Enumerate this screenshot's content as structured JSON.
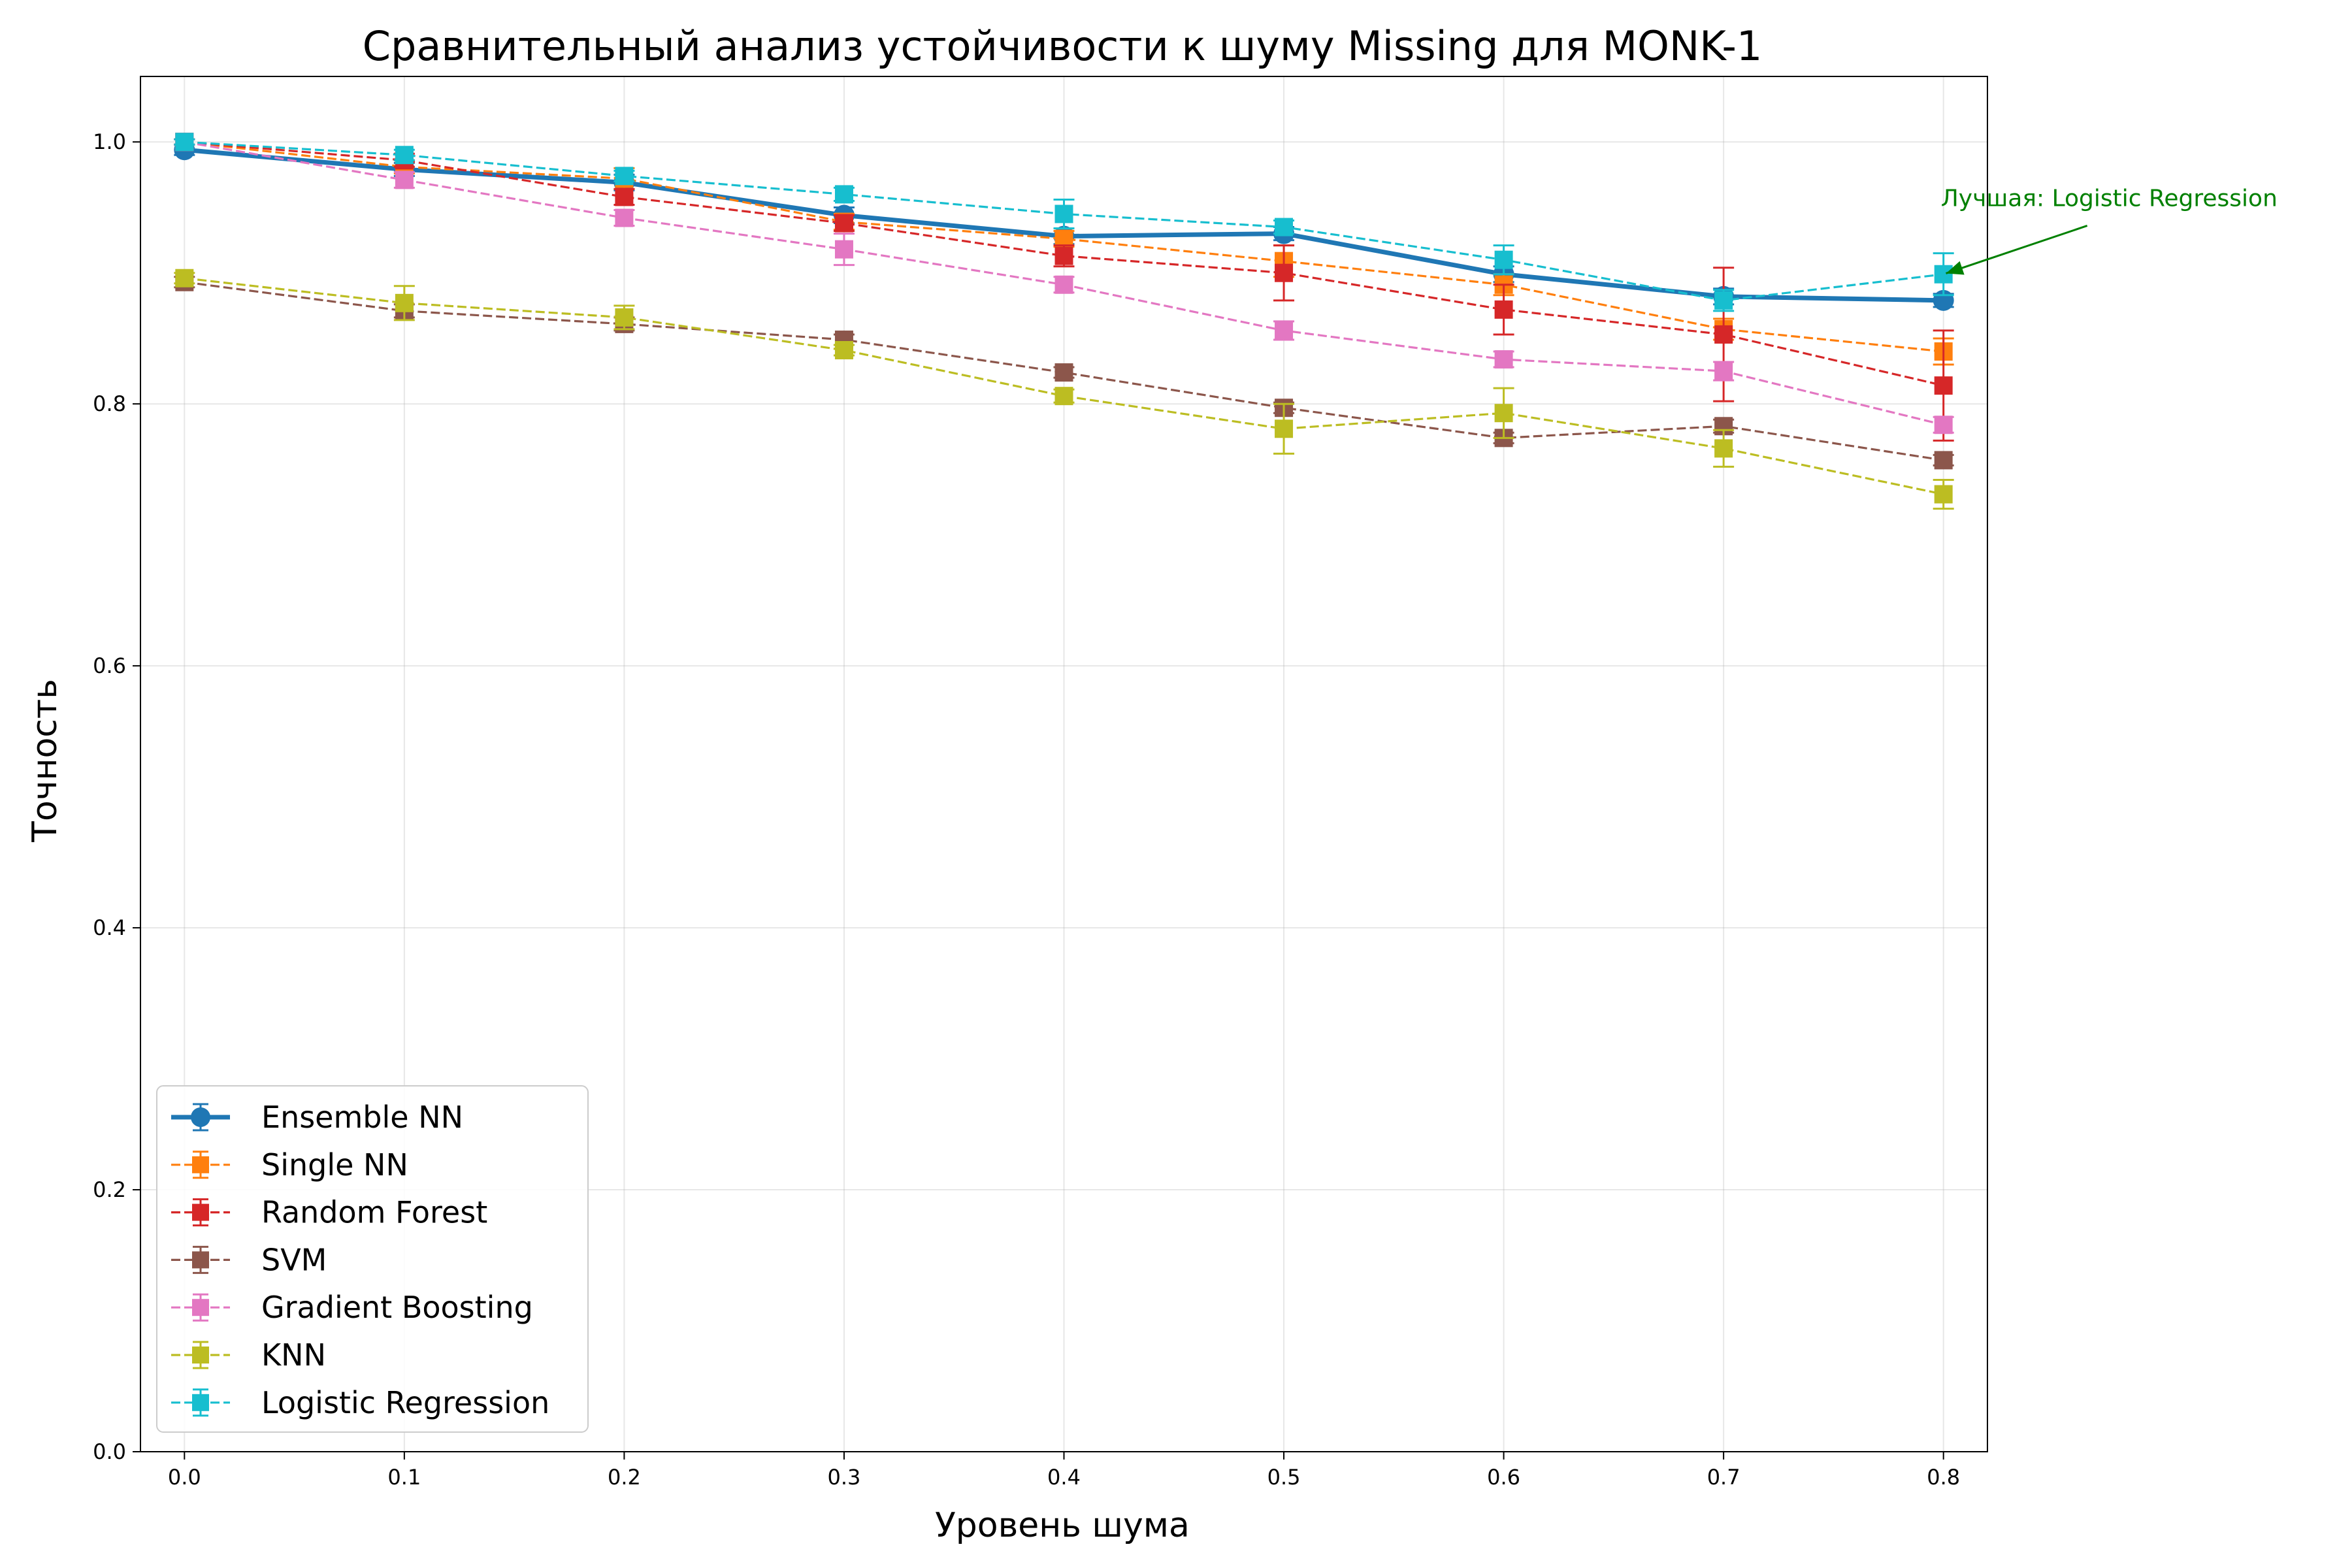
{
  "chart_data": {
    "type": "line",
    "title": "Сравнительный анализ устойчивости к шуму Missing для MONK-1",
    "xlabel": "Уровень шума",
    "ylabel": "Точность",
    "xlim": [
      -0.02,
      0.82
    ],
    "ylim": [
      0.0,
      1.05
    ],
    "x": [
      0.0,
      0.1,
      0.2,
      0.3,
      0.4,
      0.5,
      0.6,
      0.7,
      0.8
    ],
    "x_tick_labels": [
      "0.0",
      "0.1",
      "0.2",
      "0.3",
      "0.4",
      "0.5",
      "0.6",
      "0.7",
      "0.8"
    ],
    "y_ticks": [
      0.0,
      0.2,
      0.4,
      0.6,
      0.8,
      1.0
    ],
    "y_tick_labels": [
      "0.0",
      "0.2",
      "0.4",
      "0.6",
      "0.8",
      "1.0"
    ],
    "grid": true,
    "legend_position": "lower-left",
    "series": [
      {
        "name": "Ensemble NN",
        "color": "#1f77b4",
        "style": "solid",
        "marker": "circle",
        "values": [
          0.994,
          0.979,
          0.969,
          0.944,
          0.928,
          0.93,
          0.899,
          0.882,
          0.879
        ],
        "errors": [
          0.004,
          0.005,
          0.006,
          0.006,
          0.006,
          0.005,
          0.006,
          0.006,
          0.005
        ]
      },
      {
        "name": "Single NN",
        "color": "#ff7f0e",
        "style": "dashed",
        "marker": "square",
        "values": [
          1.0,
          0.981,
          0.972,
          0.939,
          0.926,
          0.909,
          0.891,
          0.857,
          0.84
        ],
        "errors": [
          0.002,
          0.005,
          0.008,
          0.006,
          0.006,
          0.012,
          0.008,
          0.008,
          0.01
        ]
      },
      {
        "name": "Random Forest",
        "color": "#d62728",
        "style": "dashed",
        "marker": "square",
        "values": [
          1.0,
          0.986,
          0.958,
          0.938,
          0.913,
          0.9,
          0.872,
          0.853,
          0.814
        ],
        "errors": [
          0.002,
          0.005,
          0.006,
          0.006,
          0.008,
          0.021,
          0.019,
          0.051,
          0.042
        ]
      },
      {
        "name": "SVM",
        "color": "#8c564b",
        "style": "dashed",
        "marker": "square",
        "values": [
          0.893,
          0.871,
          0.861,
          0.849,
          0.824,
          0.797,
          0.774,
          0.783,
          0.757
        ],
        "errors": [
          0.004,
          0.005,
          0.005,
          0.004,
          0.004,
          0.004,
          0.004,
          0.005,
          0.004
        ]
      },
      {
        "name": "Gradient Boosting",
        "color": "#e377c2",
        "style": "dashed",
        "marker": "square",
        "values": [
          1.0,
          0.971,
          0.942,
          0.918,
          0.891,
          0.856,
          0.834,
          0.825,
          0.784
        ],
        "errors": [
          0.002,
          0.006,
          0.006,
          0.012,
          0.006,
          0.007,
          0.006,
          0.007,
          0.006
        ]
      },
      {
        "name": "KNN",
        "color": "#bcbd22",
        "style": "dashed",
        "marker": "square",
        "values": [
          0.896,
          0.877,
          0.866,
          0.841,
          0.806,
          0.781,
          0.793,
          0.766,
          0.731
        ],
        "errors": [
          0.004,
          0.013,
          0.009,
          0.004,
          0.005,
          0.019,
          0.019,
          0.014,
          0.011
        ]
      },
      {
        "name": "Logistic Regression",
        "color": "#17becf",
        "style": "dashed",
        "marker": "square",
        "values": [
          1.0,
          0.99,
          0.974,
          0.96,
          0.945,
          0.935,
          0.91,
          0.879,
          0.899
        ],
        "errors": [
          0.002,
          0.004,
          0.004,
          0.005,
          0.011,
          0.005,
          0.011,
          0.008,
          0.016
        ]
      }
    ],
    "annotation": {
      "text": "Лучшая: Logistic Regression",
      "color": "#008000",
      "point": {
        "x": 0.8,
        "y": 0.899
      },
      "text_anchor_point": {
        "x": 0.8,
        "y": 0.95
      }
    }
  }
}
